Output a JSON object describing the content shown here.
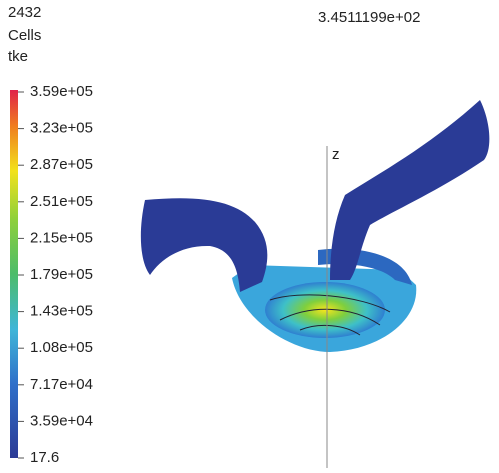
{
  "header": {
    "count": "2432",
    "count_label": "Cells",
    "variable": "tke",
    "time": "3.4511199e+02"
  },
  "colorbar": {
    "labels": [
      "3.59e+05",
      "3.23e+05",
      "2.87e+05",
      "2.51e+05",
      "2.15e+05",
      "1.79e+05",
      "1.43e+05",
      "1.08e+05",
      "7.17e+04",
      "3.59e+04",
      "17.6"
    ]
  },
  "axis": {
    "label": "z"
  }
}
